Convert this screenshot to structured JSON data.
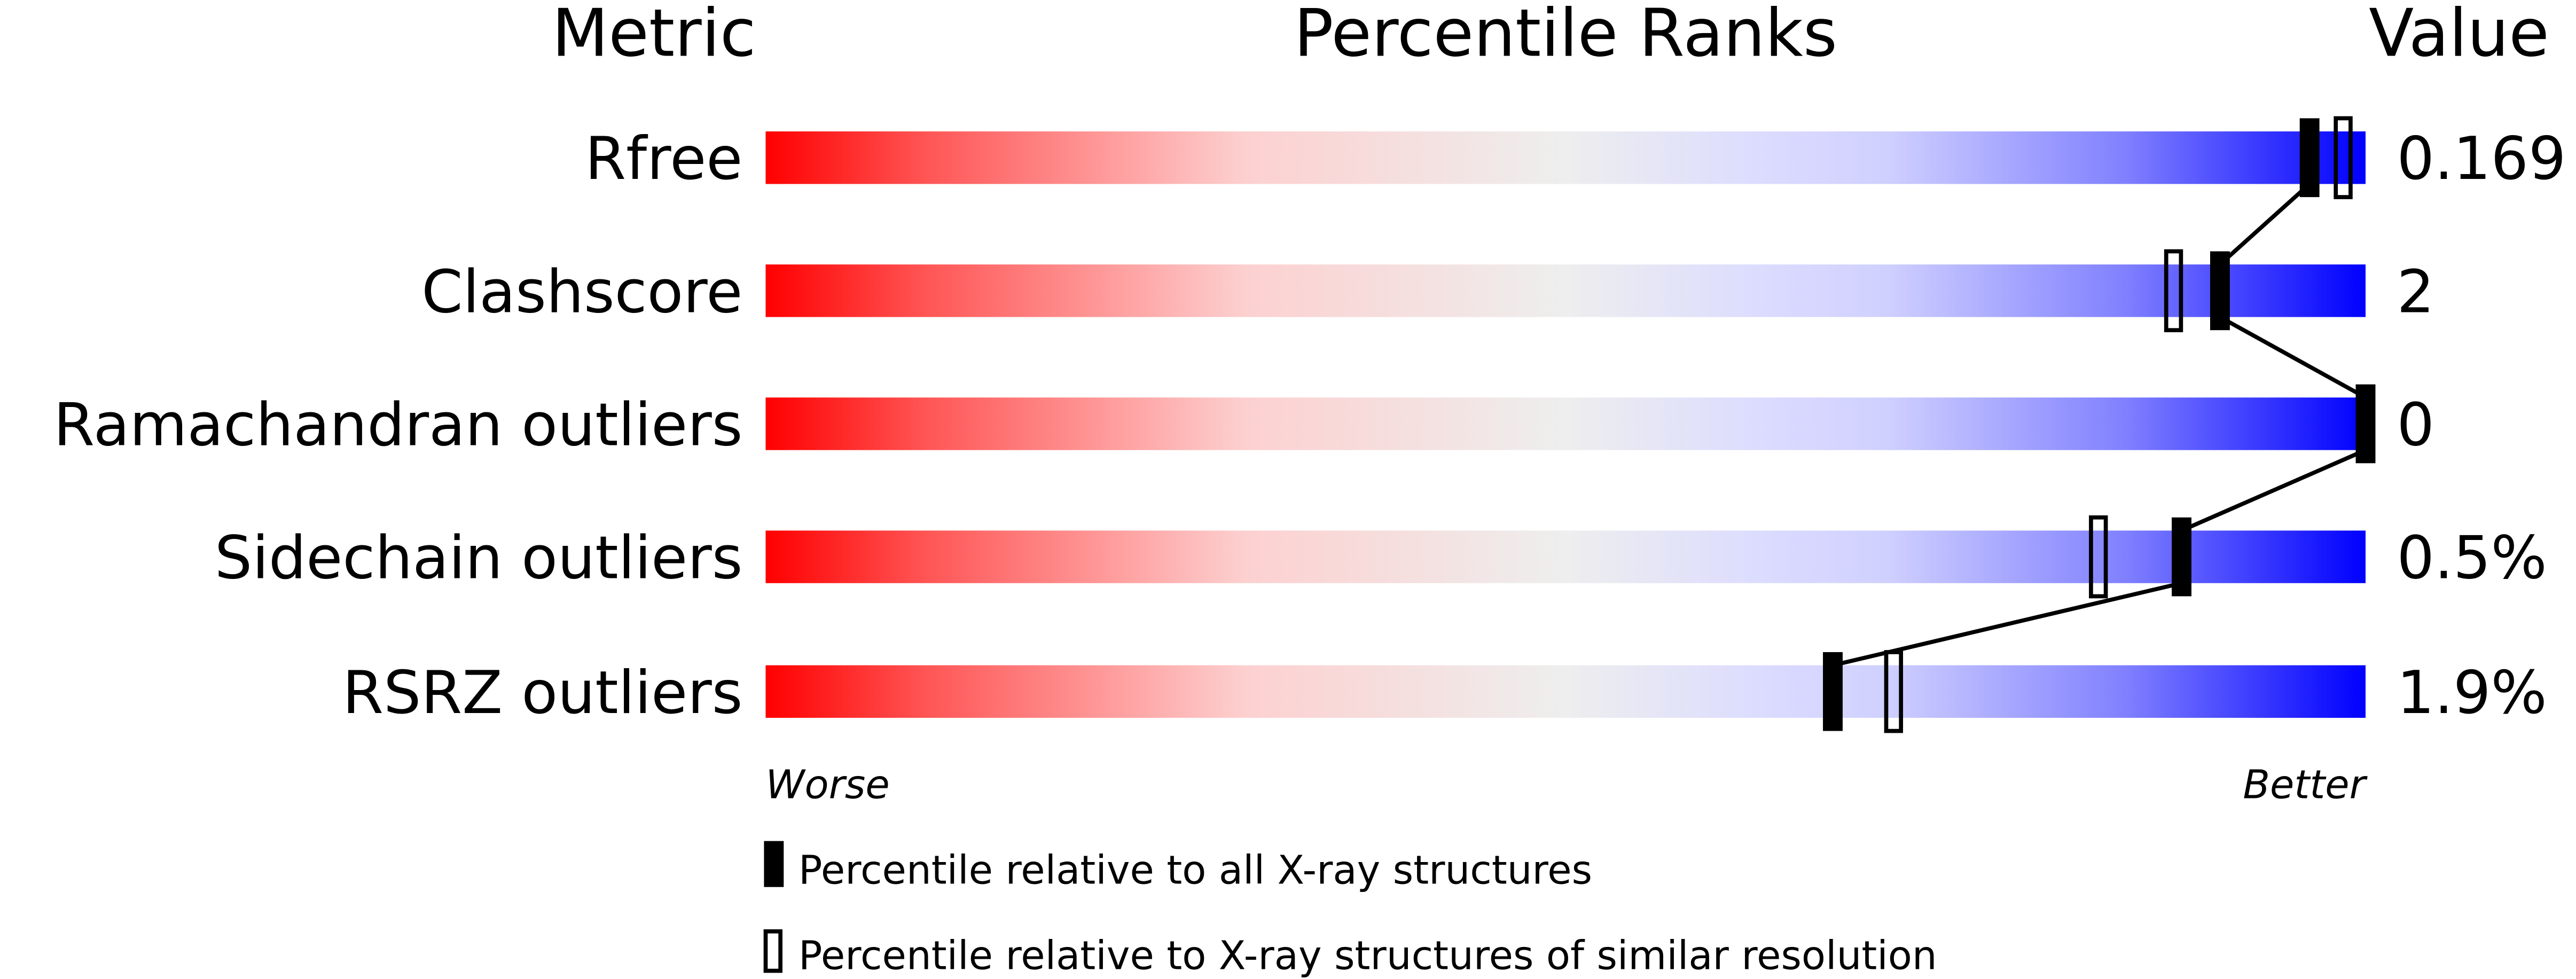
{
  "chart_data": {
    "type": "bar",
    "headers": {
      "metric": "Metric",
      "ranks": "Percentile Ranks",
      "value": "Value"
    },
    "axis": {
      "left_label": "Worse",
      "right_label": "Better",
      "range": [
        0,
        100
      ]
    },
    "rows": [
      {
        "metric": "Rfree",
        "value": "0.169",
        "percentile_all": 96.5,
        "percentile_similar": 98.6
      },
      {
        "metric": "Clashscore",
        "value": "2",
        "percentile_all": 90.9,
        "percentile_similar": 88.0
      },
      {
        "metric": "Ramachandran outliers",
        "value": "0",
        "percentile_all": 100,
        "percentile_similar": null
      },
      {
        "metric": "Sidechain outliers",
        "value": "0.5%",
        "percentile_all": 88.5,
        "percentile_similar": 83.3
      },
      {
        "metric": "RSRZ outliers",
        "value": "1.9%",
        "percentile_all": 66.7,
        "percentile_similar": 70.5
      }
    ],
    "legend": [
      {
        "marker": "filled",
        "label": "Percentile relative to all X-ray structures"
      },
      {
        "marker": "open",
        "label": "Percentile relative to X-ray structures of similar resolution"
      }
    ],
    "colors": {
      "worse": "#ff0000",
      "middle": "#eeeeee",
      "better": "#0000ff",
      "marker": "#000000"
    }
  }
}
